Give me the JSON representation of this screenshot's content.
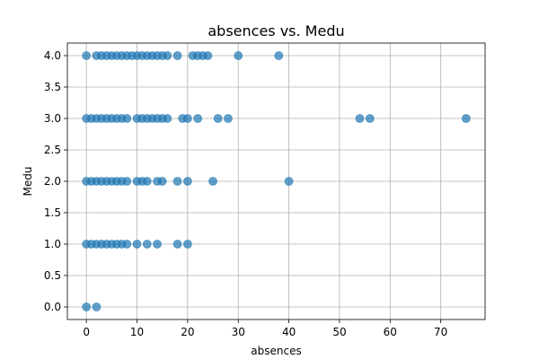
{
  "chart_data": {
    "type": "scatter",
    "title": "absences vs. Medu",
    "xlabel": "absences",
    "ylabel": "Medu",
    "xlim": [
      -3.75,
      78.75
    ],
    "ylim": [
      -0.2,
      4.2
    ],
    "xticks": [
      0,
      10,
      20,
      30,
      40,
      50,
      60,
      70
    ],
    "yticks": [
      0.0,
      0.5,
      1.0,
      1.5,
      2.0,
      2.5,
      3.0,
      3.5,
      4.0
    ],
    "xtick_labels": [
      "0",
      "10",
      "20",
      "30",
      "40",
      "50",
      "60",
      "70"
    ],
    "ytick_labels": [
      "0.0",
      "0.5",
      "1.0",
      "1.5",
      "2.0",
      "2.5",
      "3.0",
      "3.5",
      "4.0"
    ],
    "grid": true,
    "marker_color": "#1f77b4",
    "marker_alpha": 0.7,
    "series": [
      {
        "points": [
          [
            0,
            0
          ],
          [
            2,
            0
          ],
          [
            0,
            1
          ],
          [
            1,
            1
          ],
          [
            2,
            1
          ],
          [
            3,
            1
          ],
          [
            4,
            1
          ],
          [
            5,
            1
          ],
          [
            6,
            1
          ],
          [
            7,
            1
          ],
          [
            8,
            1
          ],
          [
            10,
            1
          ],
          [
            12,
            1
          ],
          [
            14,
            1
          ],
          [
            18,
            1
          ],
          [
            20,
            1
          ],
          [
            0,
            2
          ],
          [
            1,
            2
          ],
          [
            2,
            2
          ],
          [
            3,
            2
          ],
          [
            4,
            2
          ],
          [
            5,
            2
          ],
          [
            6,
            2
          ],
          [
            7,
            2
          ],
          [
            8,
            2
          ],
          [
            10,
            2
          ],
          [
            11,
            2
          ],
          [
            12,
            2
          ],
          [
            14,
            2
          ],
          [
            15,
            2
          ],
          [
            18,
            2
          ],
          [
            20,
            2
          ],
          [
            25,
            2
          ],
          [
            40,
            2
          ],
          [
            0,
            3
          ],
          [
            1,
            3
          ],
          [
            2,
            3
          ],
          [
            3,
            3
          ],
          [
            4,
            3
          ],
          [
            5,
            3
          ],
          [
            6,
            3
          ],
          [
            7,
            3
          ],
          [
            8,
            3
          ],
          [
            10,
            3
          ],
          [
            11,
            3
          ],
          [
            12,
            3
          ],
          [
            13,
            3
          ],
          [
            14,
            3
          ],
          [
            15,
            3
          ],
          [
            16,
            3
          ],
          [
            19,
            3
          ],
          [
            20,
            3
          ],
          [
            22,
            3
          ],
          [
            26,
            3
          ],
          [
            28,
            3
          ],
          [
            54,
            3
          ],
          [
            56,
            3
          ],
          [
            75,
            3
          ],
          [
            0,
            4
          ],
          [
            2,
            4
          ],
          [
            3,
            4
          ],
          [
            4,
            4
          ],
          [
            5,
            4
          ],
          [
            6,
            4
          ],
          [
            7,
            4
          ],
          [
            8,
            4
          ],
          [
            9,
            4
          ],
          [
            10,
            4
          ],
          [
            11,
            4
          ],
          [
            12,
            4
          ],
          [
            13,
            4
          ],
          [
            14,
            4
          ],
          [
            15,
            4
          ],
          [
            16,
            4
          ],
          [
            18,
            4
          ],
          [
            21,
            4
          ],
          [
            22,
            4
          ],
          [
            23,
            4
          ],
          [
            24,
            4
          ],
          [
            30,
            4
          ],
          [
            38,
            4
          ]
        ]
      }
    ]
  }
}
